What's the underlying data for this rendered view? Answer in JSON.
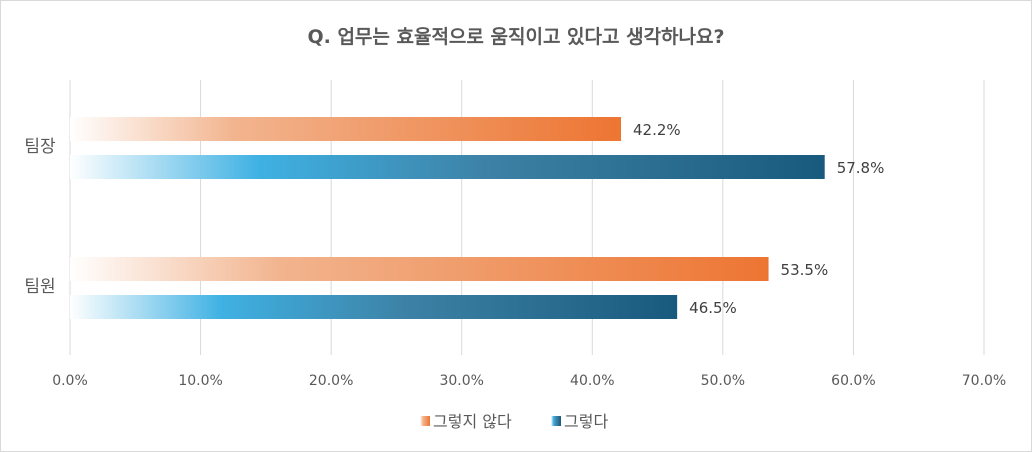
{
  "chart_data": {
    "type": "bar",
    "orientation": "horizontal",
    "title": "Q. 업무는 효율적으로 움직이고 있다고 생각하나요?",
    "categories": [
      "팀장",
      "팀원"
    ],
    "series": [
      {
        "name": "그렇지 않다",
        "values": [
          42.2,
          53.5
        ],
        "labels": [
          "42.2%",
          "53.5%"
        ],
        "color": "#ED7532"
      },
      {
        "name": "그렇다",
        "values": [
          57.8,
          46.5
        ],
        "labels": [
          "57.8%",
          "46.5%"
        ],
        "color": "#185A7D"
      }
    ],
    "xlim": [
      0,
      70
    ],
    "xticks": [
      "0.0%",
      "10.0%",
      "20.0%",
      "30.0%",
      "40.0%",
      "50.0%",
      "60.0%",
      "70.0%"
    ],
    "grid": true,
    "legend": "bottom",
    "xlabel": "",
    "ylabel": ""
  }
}
